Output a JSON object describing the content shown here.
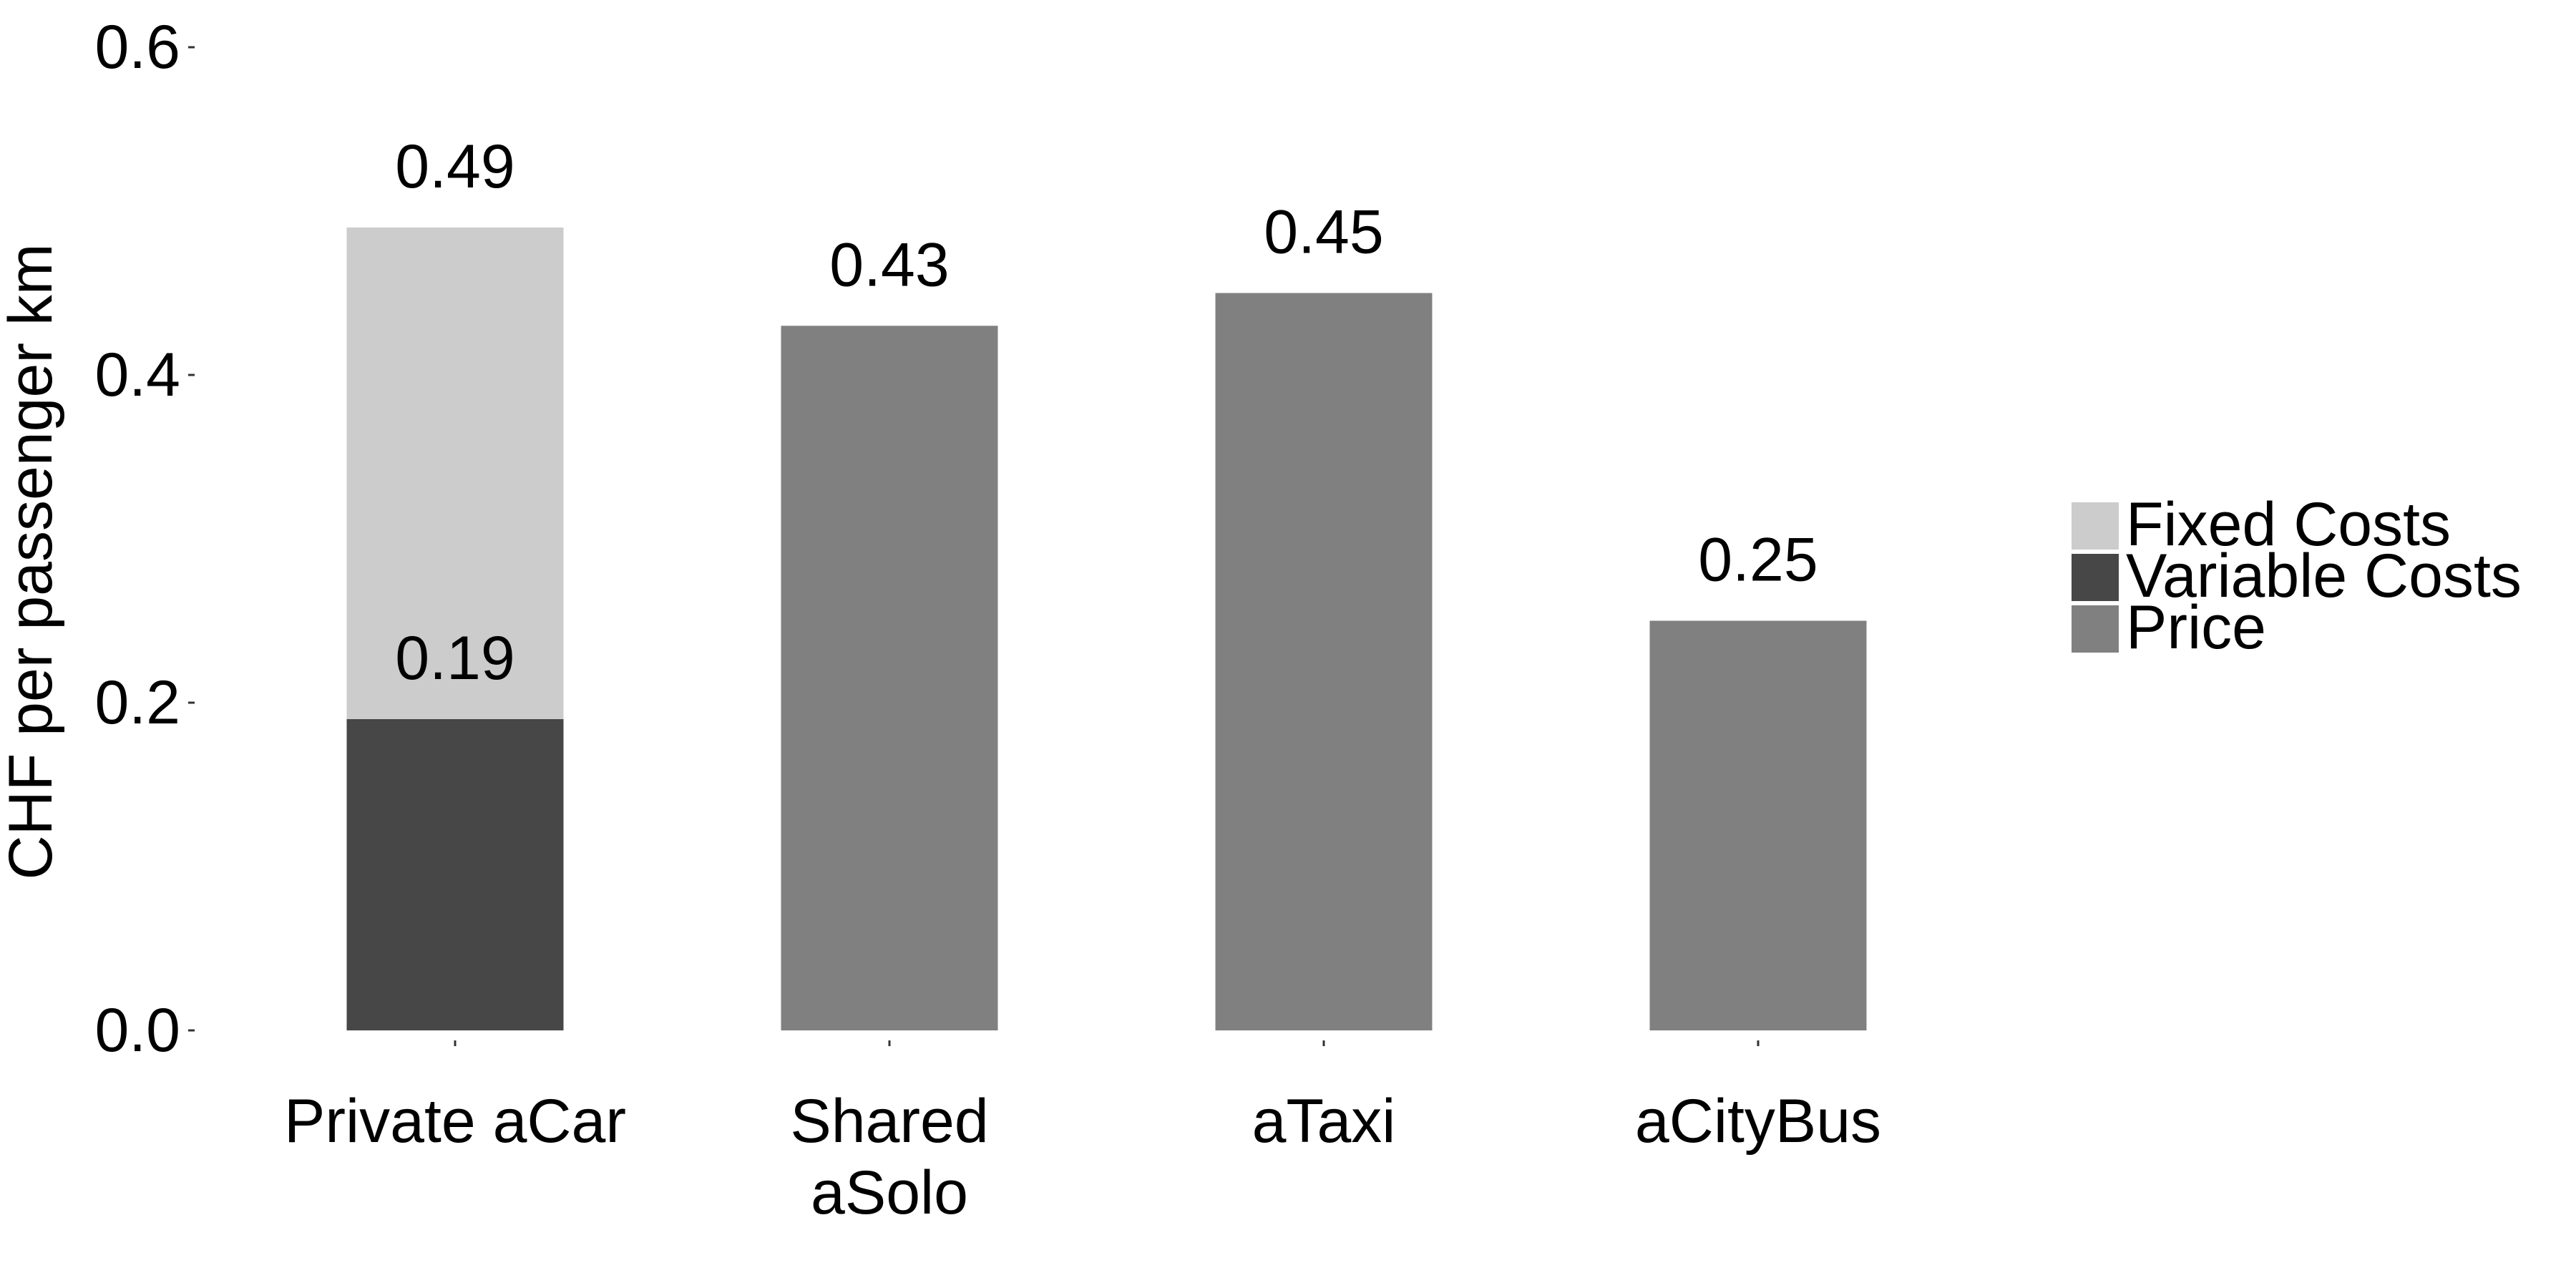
{
  "chart_data": {
    "type": "bar",
    "stacked": true,
    "categories": [
      "Private aCar",
      "Shared\naSolo",
      "aTaxi",
      "aCityBus"
    ],
    "series": [
      {
        "name": "Variable Costs",
        "color": "#474747",
        "values": [
          0.19,
          0,
          0,
          0
        ]
      },
      {
        "name": "Fixed Costs",
        "color": "#cccccc",
        "values": [
          0.3,
          0,
          0,
          0
        ]
      },
      {
        "name": "Price",
        "color": "#808080",
        "values": [
          0,
          0.43,
          0.45,
          0.25
        ]
      }
    ],
    "data_labels": [
      {
        "category": "Private aCar",
        "series": "Fixed Costs",
        "text": "0.49",
        "value": 0.49
      },
      {
        "category": "Private aCar",
        "series": "Variable Costs",
        "text": "0.19",
        "value": 0.19
      },
      {
        "category": "Shared\naSolo",
        "series": "Price",
        "text": "0.43",
        "value": 0.43
      },
      {
        "category": "aTaxi",
        "series": "Price",
        "text": "0.45",
        "value": 0.45
      },
      {
        "category": "aCityBus",
        "series": "Price",
        "text": "0.25",
        "value": 0.25
      }
    ],
    "legend": {
      "placement": "right",
      "entries": [
        {
          "name": "Fixed Costs",
          "color": "#cccccc"
        },
        {
          "name": "Variable Costs",
          "color": "#474747"
        },
        {
          "name": "Price",
          "color": "#808080"
        }
      ]
    },
    "title": "",
    "xlabel": "",
    "ylabel": "CHF per passenger km",
    "ylim": [
      0,
      0.6
    ],
    "yticks": [
      "0.0",
      "0.2",
      "0.4",
      "0.6"
    ],
    "ytick_values": [
      0,
      0.2,
      0.4,
      0.6
    ],
    "grid": false
  }
}
